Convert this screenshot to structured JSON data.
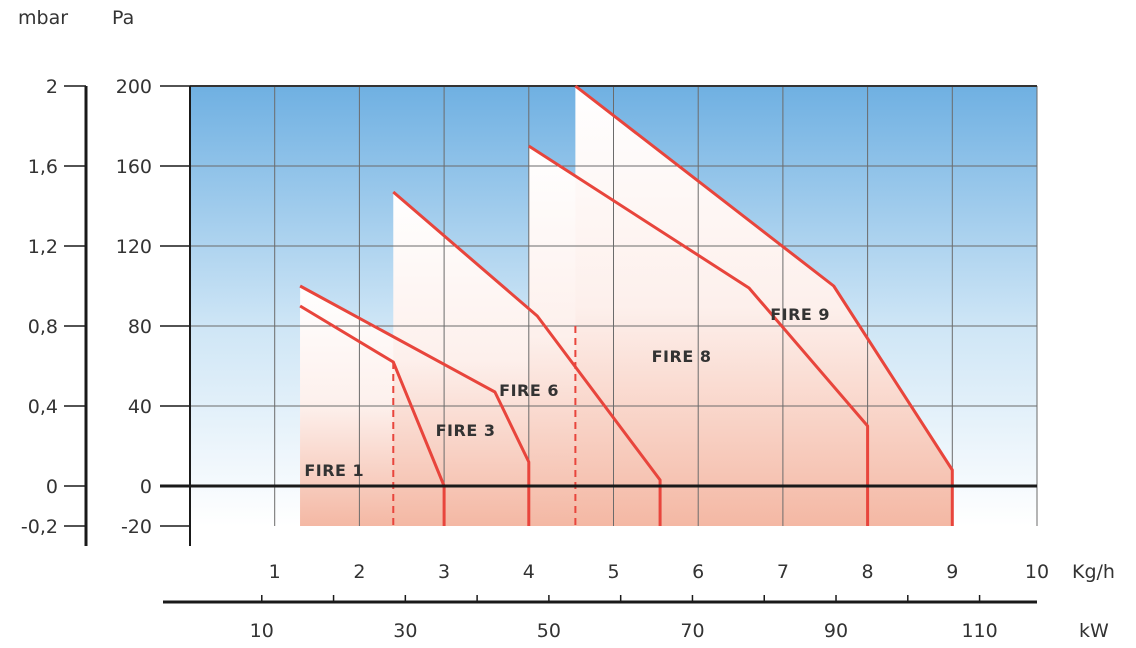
{
  "chart_data": {
    "type": "line",
    "units": {
      "left_outer": "mbar",
      "left_inner": "Pa",
      "bottom_inner": "Kg/h",
      "bottom_outer": "kW"
    },
    "y_axis_pa": {
      "range": [
        -20,
        200
      ],
      "ticks": [
        -20,
        0,
        40,
        80,
        120,
        160,
        200
      ],
      "tick_labels": [
        "-20",
        "0",
        "40",
        "80",
        "120",
        "160",
        "200"
      ]
    },
    "y_axis_mbar": {
      "range": [
        -0.2,
        2
      ],
      "ticks": [
        -0.2,
        0,
        0.4,
        0.8,
        1.2,
        1.6,
        2
      ],
      "tick_labels": [
        "-0,2",
        "0",
        "0,4",
        "0,8",
        "1,2",
        "1,6",
        "2"
      ]
    },
    "x_axis_kgh": {
      "range": [
        0,
        10
      ],
      "ticks": [
        1,
        2,
        3,
        4,
        5,
        6,
        7,
        8,
        9,
        10
      ],
      "tick_labels": [
        "1",
        "2",
        "3",
        "4",
        "5",
        "6",
        "7",
        "8",
        "9",
        "10"
      ]
    },
    "x_axis_kw": {
      "ticks": [
        10,
        30,
        50,
        70,
        90,
        110
      ],
      "tick_labels": [
        "10",
        "30",
        "50",
        "70",
        "90",
        "110"
      ]
    },
    "grid": true,
    "series": [
      {
        "name": "FIRE 1",
        "x": [
          1.3,
          2.4,
          3.0,
          3.0
        ],
        "y": [
          90,
          62,
          0,
          -20
        ]
      },
      {
        "name": "FIRE 3",
        "x": [
          1.3,
          3.6,
          4.0,
          4.0
        ],
        "y": [
          100,
          47,
          12,
          -20
        ]
      },
      {
        "name": "FIRE 6",
        "x": [
          2.4,
          4.1,
          5.55,
          5.55
        ],
        "y": [
          147,
          85,
          3,
          -20
        ]
      },
      {
        "name": "FIRE 8",
        "x": [
          4.0,
          6.6,
          8.0,
          8.0
        ],
        "y": [
          170,
          99,
          30,
          -20
        ]
      },
      {
        "name": "FIRE 9",
        "x": [
          4.55,
          7.6,
          9.0,
          9.0
        ],
        "y": [
          200,
          100,
          8,
          -20
        ]
      }
    ],
    "dashed_markers": [
      {
        "x": 2.4,
        "y_top": 62,
        "y_bottom": -20
      },
      {
        "x": 4.55,
        "y_top": 80,
        "y_bottom": -20
      }
    ]
  }
}
